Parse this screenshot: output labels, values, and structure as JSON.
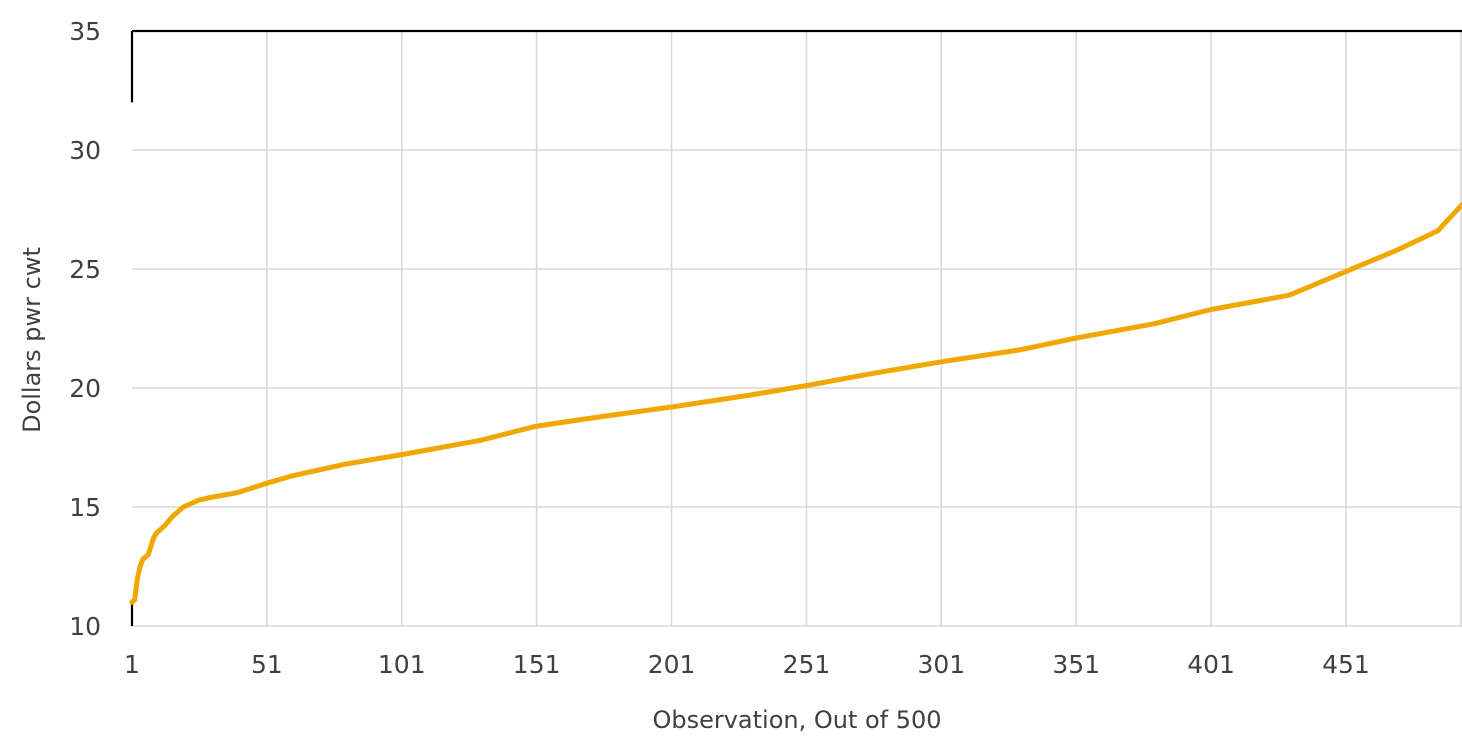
{
  "chart_data": {
    "type": "line",
    "title": "",
    "xlabel": "Observation, Out of 500",
    "ylabel": "Dollars pwr cwt",
    "xlim": [
      1,
      494
    ],
    "ylim": [
      10,
      35
    ],
    "x_ticks": [
      1,
      51,
      101,
      151,
      201,
      251,
      301,
      351,
      401,
      451
    ],
    "x_tick_labels": [
      "1",
      "51",
      "101",
      "151",
      "201",
      "251",
      "301",
      "351",
      "401",
      "451"
    ],
    "y_ticks": [
      10,
      15,
      20,
      25,
      30,
      35
    ],
    "y_tick_labels": [
      "10",
      "15",
      "20",
      "25",
      "30",
      "35"
    ],
    "grid": true,
    "legend": "none",
    "colors": {
      "line": "#f0a800",
      "grid": "#d9d9d9",
      "frame": "#000000",
      "text": "#404040"
    },
    "series": [
      {
        "x": [
          1,
          2,
          3,
          4,
          5,
          7,
          9,
          10,
          11,
          13,
          16,
          20,
          26,
          30,
          40,
          51,
          60,
          80,
          101,
          130,
          151,
          175,
          201,
          230,
          251,
          275,
          301,
          330,
          351,
          380,
          401,
          430,
          451,
          470,
          485,
          494
        ],
        "values": [
          11.0,
          11.1,
          12.0,
          12.5,
          12.8,
          13.0,
          13.7,
          13.9,
          14.0,
          14.2,
          14.6,
          15.0,
          15.3,
          15.4,
          15.6,
          16.0,
          16.3,
          16.8,
          17.2,
          17.8,
          18.4,
          18.8,
          19.2,
          19.7,
          20.1,
          20.6,
          21.1,
          21.6,
          22.1,
          22.7,
          23.3,
          23.9,
          24.9,
          25.8,
          26.6,
          27.7
        ]
      }
    ]
  }
}
